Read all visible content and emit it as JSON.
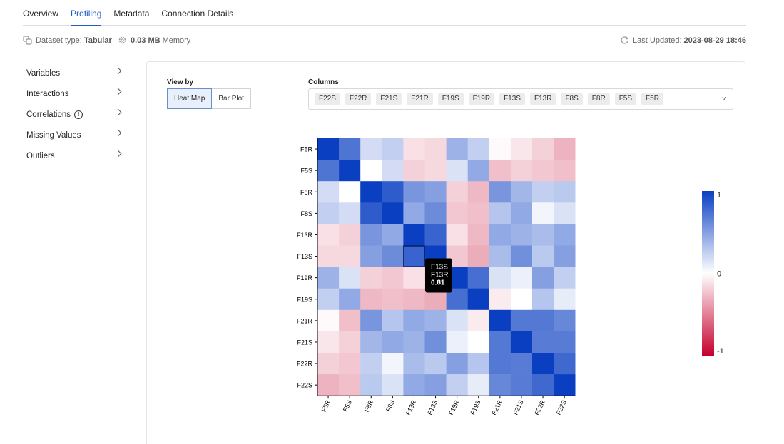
{
  "tabs": [
    {
      "label": "Overview",
      "active": false
    },
    {
      "label": "Profiling",
      "active": true
    },
    {
      "label": "Metadata",
      "active": false
    },
    {
      "label": "Connection Details",
      "active": false
    }
  ],
  "info": {
    "dataset_type_label": "Dataset type:",
    "dataset_type_value": "Tabular",
    "memory_value": "0.03 MB",
    "memory_label": "Memory",
    "updated_label": "Last Updated:",
    "updated_value": "2023-08-29 18:46"
  },
  "sidebar": {
    "items": [
      {
        "label": "Variables"
      },
      {
        "label": "Interactions"
      },
      {
        "label": "Correlations"
      },
      {
        "label": "Missing Values"
      },
      {
        "label": "Outliers"
      }
    ]
  },
  "viewby": {
    "label": "View by",
    "options": [
      "Heat Map",
      "Bar Plot"
    ],
    "selected": "Heat Map"
  },
  "columns": {
    "label": "Columns",
    "chips": [
      "F22S",
      "F22R",
      "F21S",
      "F21R",
      "F19S",
      "F19R",
      "F13S",
      "F13R",
      "F8S",
      "F8R",
      "F5S",
      "F5R"
    ],
    "dropdown_icon": "v"
  },
  "tooltip": {
    "row": "F13S",
    "col": "F13R",
    "value": "0.81"
  },
  "colors": {
    "accent": "#1f5fc4",
    "positive": "#0a3fc2",
    "negative": "#c4002c",
    "neutral": "#ffffff"
  },
  "chart_data": {
    "type": "heatmap",
    "labels": [
      "F5R",
      "F5S",
      "F8R",
      "F8S",
      "F13R",
      "F13S",
      "F19R",
      "F19S",
      "F21R",
      "F21S",
      "F22R",
      "F22S"
    ],
    "values": [
      [
        1.0,
        0.72,
        0.18,
        0.25,
        -0.12,
        -0.15,
        0.4,
        0.25,
        -0.02,
        -0.1,
        -0.18,
        -0.3
      ],
      [
        0.72,
        1.0,
        0.0,
        0.18,
        -0.18,
        -0.15,
        0.15,
        0.45,
        -0.25,
        -0.18,
        -0.22,
        -0.25
      ],
      [
        0.18,
        0.0,
        1.0,
        0.85,
        0.55,
        0.5,
        -0.18,
        -0.28,
        0.55,
        0.38,
        0.25,
        0.28
      ],
      [
        0.25,
        0.18,
        0.85,
        1.0,
        0.45,
        0.6,
        -0.22,
        -0.25,
        0.3,
        0.45,
        0.05,
        0.15
      ],
      [
        -0.12,
        -0.18,
        0.55,
        0.45,
        1.0,
        0.81,
        -0.12,
        -0.28,
        0.45,
        0.4,
        0.35,
        0.45
      ],
      [
        -0.15,
        -0.15,
        0.5,
        0.6,
        0.81,
        1.0,
        -0.22,
        -0.32,
        0.35,
        0.58,
        0.28,
        0.5
      ],
      [
        0.4,
        0.15,
        -0.18,
        -0.22,
        -0.12,
        -0.22,
        1.0,
        0.75,
        0.15,
        0.08,
        0.5,
        0.25
      ],
      [
        0.25,
        0.45,
        -0.28,
        -0.25,
        -0.28,
        -0.32,
        0.75,
        1.0,
        -0.08,
        0.0,
        0.3,
        0.1
      ],
      [
        -0.02,
        -0.25,
        0.55,
        0.3,
        0.45,
        0.4,
        0.15,
        -0.08,
        1.0,
        0.7,
        0.7,
        0.62
      ],
      [
        -0.1,
        -0.18,
        0.38,
        0.45,
        0.4,
        0.58,
        0.08,
        0.0,
        0.7,
        1.0,
        0.68,
        0.68
      ],
      [
        -0.18,
        -0.22,
        0.25,
        0.05,
        0.35,
        0.28,
        0.5,
        0.3,
        0.7,
        0.68,
        1.0,
        0.78
      ],
      [
        -0.3,
        -0.25,
        0.28,
        0.15,
        0.45,
        0.5,
        0.25,
        0.1,
        0.62,
        0.68,
        0.78,
        1.0
      ]
    ],
    "scale": {
      "min": -1,
      "mid": 0,
      "max": 1,
      "labels": [
        "1",
        "0",
        "-1"
      ]
    },
    "highlight": {
      "row": "F13S",
      "col": "F13R",
      "value": 0.81
    }
  }
}
